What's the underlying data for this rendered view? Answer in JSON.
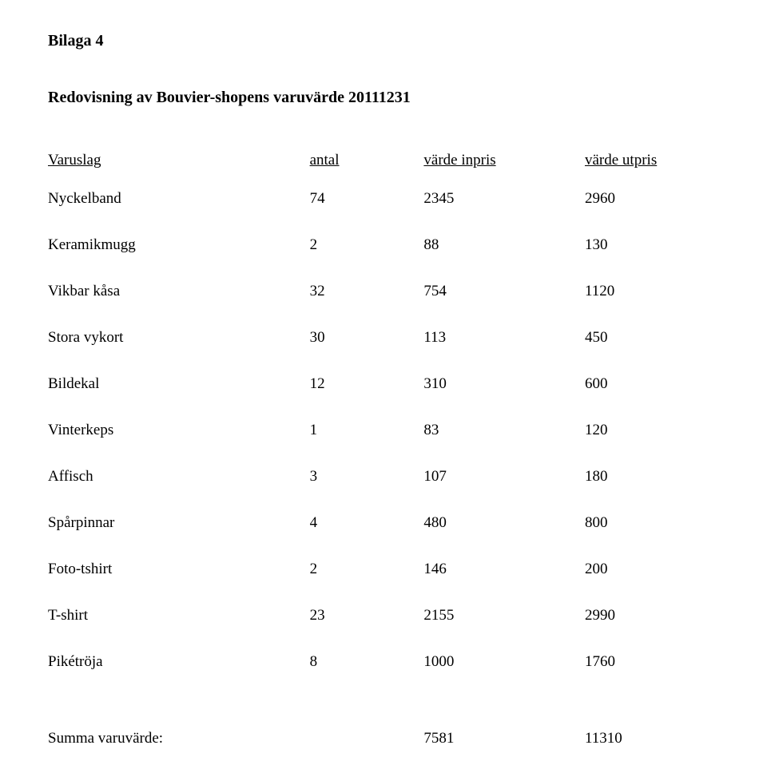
{
  "page_label": "Bilaga 4",
  "title": "Redovisning av Bouvier-shopens varuvärde 20111231",
  "headers": {
    "name": "Varuslag",
    "qty": "antal",
    "inpris": "värde inpris",
    "utpris": "värde utpris"
  },
  "rows": [
    {
      "name": "Nyckelband",
      "qty": "74",
      "inpris": "2345",
      "utpris": "2960"
    },
    {
      "name": "Keramikmugg",
      "qty": "2",
      "inpris": "88",
      "utpris": "130"
    },
    {
      "name": "Vikbar kåsa",
      "qty": "32",
      "inpris": "754",
      "utpris": "1120"
    },
    {
      "name": "Stora vykort",
      "qty": "30",
      "inpris": "113",
      "utpris": "450"
    },
    {
      "name": "Bildekal",
      "qty": "12",
      "inpris": "310",
      "utpris": "600"
    },
    {
      "name": "Vinterkeps",
      "qty": "1",
      "inpris": "83",
      "utpris": "120"
    },
    {
      "name": "Affisch",
      "qty": "3",
      "inpris": "107",
      "utpris": "180"
    },
    {
      "name": "Spårpinnar",
      "qty": "4",
      "inpris": "480",
      "utpris": "800"
    },
    {
      "name": "Foto-tshirt",
      "qty": "2",
      "inpris": "146",
      "utpris": "200"
    },
    {
      "name": "T-shirt",
      "qty": "23",
      "inpris": "2155",
      "utpris": "2990"
    },
    {
      "name": "Pikétröja",
      "qty": "8",
      "inpris": "1000",
      "utpris": "1760"
    }
  ],
  "summary": {
    "label": "Summa varuvärde:",
    "inpris": "7581",
    "utpris": "11310"
  },
  "colors": {
    "text": "#000000",
    "background": "#ffffff"
  },
  "typography": {
    "font_family": "Times New Roman",
    "body_fontsize_pt": 14,
    "title_fontsize_pt": 15,
    "title_weight": "bold",
    "page_label_weight": "bold"
  }
}
